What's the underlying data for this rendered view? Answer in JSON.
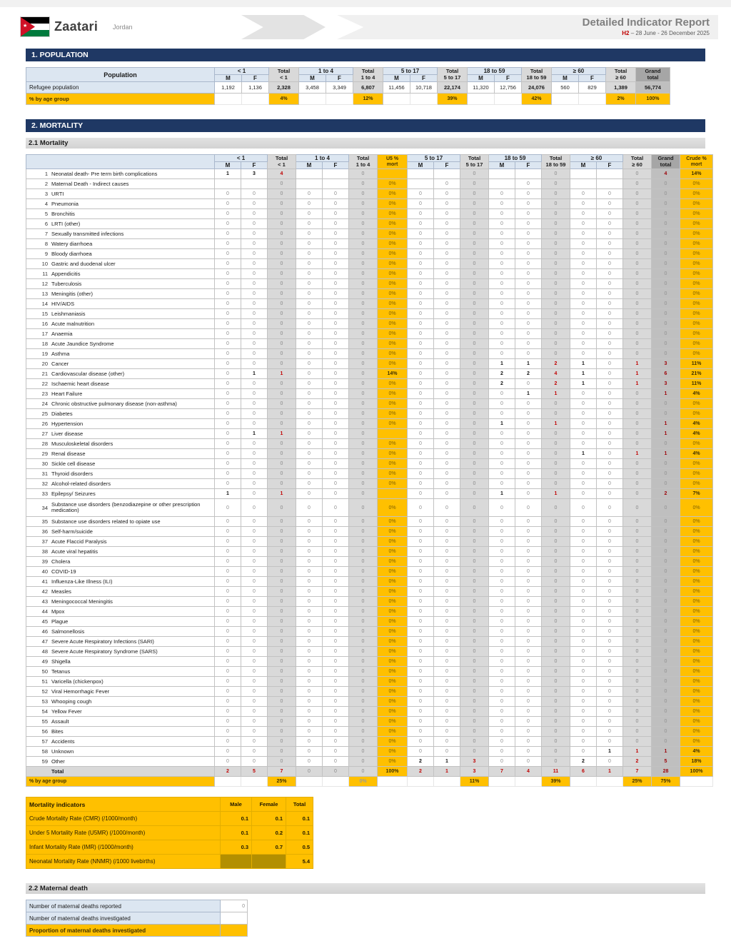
{
  "header": {
    "camp": "Zaatari",
    "country": "Jordan",
    "report_title": "Detailed Indicator Report",
    "period_code": "H2",
    "period_rest": " – 28 June - 26 December 2025",
    "flag_star": "★"
  },
  "sections": {
    "population": "1. POPULATION",
    "mortality": "2. MORTALITY",
    "mortality_sub": "2.1 Mortality",
    "maternal_sub": "2.2 Maternal death"
  },
  "table_headers": {
    "population_label": "Population",
    "mf": [
      "M",
      "F"
    ],
    "groups": [
      "< 1",
      "1 to 4",
      "5 to 17",
      "18 to 59",
      "≥ 60"
    ],
    "totals": [
      "Total\n< 1",
      "Total\n1 to 4",
      "Total\n5 to 17",
      "Total\n18 to 59",
      "Total\n≥ 60"
    ],
    "grand": "Grand\ntotal",
    "u5": "U5 %\nmort",
    "crude": "Crude %\nmort"
  },
  "population_table": {
    "rows": [
      {
        "label": "Refugee population",
        "values": [
          "1,192",
          "1,136",
          "2,328",
          "3,458",
          "3,349",
          "6,807",
          "11,456",
          "10,718",
          "22,174",
          "11,320",
          "12,756",
          "24,076",
          "560",
          "829",
          "1,389",
          "56,774"
        ]
      }
    ],
    "pct_row": {
      "label": "% by age group",
      "values": [
        "",
        "",
        "4%",
        "",
        "",
        "12%",
        "",
        "",
        "39%",
        "",
        "",
        "42%",
        "",
        "",
        "2%",
        "100%"
      ]
    }
  },
  "mortality_table": {
    "default_values": [
      "0",
      "0",
      "0",
      "0",
      "0",
      "0",
      "0%",
      "0",
      "0",
      "0",
      "0",
      "0",
      "0",
      "0",
      "0",
      "0",
      "0",
      "0%"
    ],
    "rows": [
      {
        "n": "1",
        "label": "Neonatal death- Pre term birth complications",
        "v": [
          "1",
          "3",
          "4",
          "",
          "",
          "0",
          "",
          "",
          "",
          "0",
          "",
          "",
          "0",
          "",
          "",
          "0",
          "4",
          "14%"
        ]
      },
      {
        "n": "2",
        "label": "Maternal Death - Indirect causes",
        "v": [
          "",
          "",
          "0",
          "",
          "",
          "0",
          "0%",
          "",
          "0",
          "0",
          "",
          "0",
          "0",
          "",
          "",
          "0",
          "0",
          "0%"
        ]
      },
      {
        "n": "3",
        "label": "URTI"
      },
      {
        "n": "4",
        "label": "Pneumonia"
      },
      {
        "n": "5",
        "label": "Bronchitis"
      },
      {
        "n": "6",
        "label": "LRTI (other)"
      },
      {
        "n": "7",
        "label": "Sexually transmitted infections"
      },
      {
        "n": "8",
        "label": "Watery diarrhoea"
      },
      {
        "n": "9",
        "label": "Bloody diarrhoea"
      },
      {
        "n": "10",
        "label": "Gastric and duodenal ulcer"
      },
      {
        "n": "11",
        "label": "Appendicitis"
      },
      {
        "n": "12",
        "label": "Tuberculosis"
      },
      {
        "n": "13",
        "label": "Meningitis (other)"
      },
      {
        "n": "14",
        "label": "HIV/AIDS"
      },
      {
        "n": "15",
        "label": "Leishmaniasis"
      },
      {
        "n": "16",
        "label": "Acute malnutrition"
      },
      {
        "n": "17",
        "label": "Anaemia"
      },
      {
        "n": "18",
        "label": "Acute Jaundice Syndrome"
      },
      {
        "n": "19",
        "label": "Asthma"
      },
      {
        "n": "20",
        "label": "Cancer",
        "v": [
          "0",
          "0",
          "0",
          "0",
          "0",
          "0",
          "0%",
          "0",
          "0",
          "0",
          "1",
          "1",
          "2",
          "1",
          "0",
          "1",
          "3",
          "11%"
        ]
      },
      {
        "n": "21",
        "label": "Cardiovascular disease (other)",
        "v": [
          "0",
          "1",
          "1",
          "0",
          "0",
          "0",
          "14%",
          "0",
          "0",
          "0",
          "2",
          "2",
          "4",
          "1",
          "0",
          "1",
          "6",
          "21%"
        ]
      },
      {
        "n": "22",
        "label": "Ischaemic heart disease",
        "v": [
          "0",
          "0",
          "0",
          "0",
          "0",
          "0",
          "0%",
          "0",
          "0",
          "0",
          "2",
          "0",
          "2",
          "1",
          "0",
          "1",
          "3",
          "11%"
        ]
      },
      {
        "n": "23",
        "label": "Heart Failure",
        "v": [
          "0",
          "0",
          "0",
          "0",
          "0",
          "0",
          "0%",
          "0",
          "0",
          "0",
          "0",
          "1",
          "1",
          "0",
          "0",
          "0",
          "1",
          "4%"
        ]
      },
      {
        "n": "24",
        "label": "Chronic obstructive pulmonary disease (non-asthma)"
      },
      {
        "n": "25",
        "label": "Diabetes"
      },
      {
        "n": "26",
        "label": "Hypertension",
        "v": [
          "0",
          "0",
          "0",
          "0",
          "0",
          "0",
          "0%",
          "0",
          "0",
          "0",
          "1",
          "0",
          "1",
          "0",
          "0",
          "0",
          "1",
          "4%"
        ]
      },
      {
        "n": "27",
        "label": "Liver disease",
        "v": [
          "0",
          "1",
          "1",
          "0",
          "0",
          "0",
          "",
          "0",
          "0",
          "0",
          "0",
          "0",
          "0",
          "0",
          "0",
          "0",
          "1",
          "4%"
        ]
      },
      {
        "n": "28",
        "label": "Musculoskeletal disorders"
      },
      {
        "n": "29",
        "label": "Renal disease",
        "v": [
          "0",
          "0",
          "0",
          "0",
          "0",
          "0",
          "0%",
          "0",
          "0",
          "0",
          "0",
          "0",
          "0",
          "1",
          "0",
          "1",
          "1",
          "4%"
        ]
      },
      {
        "n": "30",
        "label": "Sickle cell disease"
      },
      {
        "n": "31",
        "label": "Thyroid disorders"
      },
      {
        "n": "32",
        "label": "Alcohol-related disorders"
      },
      {
        "n": "33",
        "label": "Epilepsy/ Seizures",
        "v": [
          "1",
          "0",
          "1",
          "0",
          "0",
          "0",
          "",
          "0",
          "0",
          "0",
          "1",
          "0",
          "1",
          "0",
          "0",
          "0",
          "2",
          "7%"
        ]
      },
      {
        "n": "34",
        "label": "Substance use disorders (benzodiazepine or other prescription medication)",
        "tall": true
      },
      {
        "n": "35",
        "label": "Substance use disorders related to opiate use"
      },
      {
        "n": "36",
        "label": "Self-harm/suicide"
      },
      {
        "n": "37",
        "label": "Acute Flaccid Paralysis"
      },
      {
        "n": "38",
        "label": "Acute viral hepatitis"
      },
      {
        "n": "39",
        "label": "Cholera"
      },
      {
        "n": "40",
        "label": "COVID-19"
      },
      {
        "n": "41",
        "label": "Influenza-Like Illness (ILI)"
      },
      {
        "n": "42",
        "label": "Measles"
      },
      {
        "n": "43",
        "label": "Meningococcal Meningitis"
      },
      {
        "n": "44",
        "label": "Mpox"
      },
      {
        "n": "45",
        "label": "Plague"
      },
      {
        "n": "46",
        "label": "Salmonellosis"
      },
      {
        "n": "47",
        "label": "Severe Acute Respiratory Infections (SARI)"
      },
      {
        "n": "48",
        "label": "Severe Acute Respiratory Syndrome (SARS)"
      },
      {
        "n": "49",
        "label": "Shigella"
      },
      {
        "n": "50",
        "label": "Tetanus"
      },
      {
        "n": "51",
        "label": "Varicella (chickenpox)"
      },
      {
        "n": "52",
        "label": "Viral Hemorrhagic Fever"
      },
      {
        "n": "53",
        "label": "Whooping cough"
      },
      {
        "n": "54",
        "label": "Yellow Fever"
      },
      {
        "n": "55",
        "label": "Assault"
      },
      {
        "n": "56",
        "label": "Bites"
      },
      {
        "n": "57",
        "label": "Accidents"
      },
      {
        "n": "58",
        "label": "Unknown",
        "v": [
          "0",
          "0",
          "0",
          "0",
          "0",
          "0",
          "0%",
          "0",
          "0",
          "0",
          "0",
          "0",
          "0",
          "0",
          "1",
          "1",
          "1",
          "4%"
        ]
      },
      {
        "n": "59",
        "label": "Other",
        "v": [
          "0",
          "0",
          "0",
          "0",
          "0",
          "0",
          "0%",
          "2",
          "1",
          "3",
          "0",
          "0",
          "0",
          "2",
          "0",
          "2",
          "5",
          "18%"
        ]
      }
    ],
    "total_row": {
      "label": "Total",
      "v": [
        "2",
        "5",
        "7",
        "0",
        "0",
        "0",
        "100%",
        "2",
        "1",
        "3",
        "7",
        "4",
        "11",
        "6",
        "1",
        "7",
        "28",
        "100%"
      ]
    },
    "pct_row": {
      "label": "% by age group",
      "v": [
        "",
        "",
        "25%",
        "",
        "",
        "0%",
        "",
        "",
        "",
        "11%",
        "",
        "",
        "39%",
        "",
        "",
        "25%",
        "75%",
        ""
      ]
    }
  },
  "indicators_table": {
    "header": {
      "label": "Mortality indicators",
      "male": "Male",
      "female": "Female",
      "total": "Total"
    },
    "rows": [
      {
        "label": "Crude Mortality Rate (CMR) (/1000/month)",
        "male": "0.1",
        "female": "0.1",
        "total": "0.1"
      },
      {
        "label": "Under 5 Mortality Rate (U5MR) (/1000/month)",
        "male": "0.1",
        "female": "0.2",
        "total": "0.1"
      },
      {
        "label": "Infant Mortality Rate (IMR) (/1000/month)",
        "male": "0.3",
        "female": "0.7",
        "total": "0.5"
      },
      {
        "label": "Neonatal Mortality Rate (NNMR) (/1000 livebirths)",
        "male": "",
        "female": "",
        "total": "5.4",
        "shaded": true
      }
    ]
  },
  "maternal_table": {
    "rows": [
      {
        "label": "Number of maternal deaths reported",
        "value": "0",
        "yellow": false
      },
      {
        "label": "Number of maternal deaths investigated",
        "value": "",
        "yellow": false
      },
      {
        "label": "Proportion of maternal deaths investigated",
        "value": "",
        "yellow": true
      }
    ]
  }
}
